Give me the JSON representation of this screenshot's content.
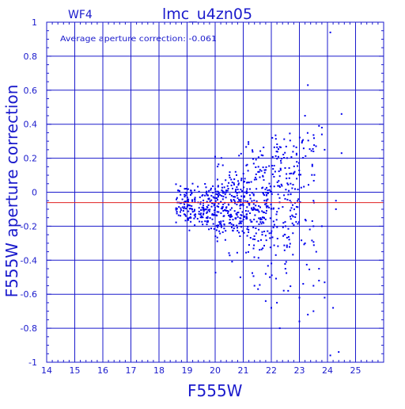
{
  "chart_data": {
    "type": "scatter",
    "title": "lmc_u4zn05",
    "chip_label": "WF4",
    "annotation": "Average aperture correction: -0.061",
    "xlabel": "F555W",
    "ylabel": "F555W aperture correction",
    "xlim": [
      14,
      26
    ],
    "ylim": [
      -1,
      1
    ],
    "x_ticks": [
      14,
      15,
      16,
      17,
      18,
      19,
      20,
      21,
      22,
      23,
      24,
      25
    ],
    "y_ticks": [
      -1,
      -0.8,
      -0.6,
      -0.4,
      -0.2,
      0,
      0.2,
      0.4,
      0.6,
      0.8,
      1
    ],
    "grid": true,
    "mean_line": {
      "y": -0.061,
      "color": "#e02020"
    },
    "colors": {
      "axes": "#1a1acc",
      "points": "#0000ee"
    },
    "clusters": [
      {
        "x_range": [
          18.6,
          20.0
        ],
        "y_center": -0.08,
        "y_spread": 0.06,
        "count": 190
      },
      {
        "x_range": [
          20.0,
          21.0
        ],
        "y_center": -0.09,
        "y_spread": 0.11,
        "count": 200
      },
      {
        "x_range": [
          21.0,
          22.0
        ],
        "y_center": -0.09,
        "y_spread": 0.16,
        "count": 200
      },
      {
        "x_range": [
          22.0,
          22.9
        ],
        "y_center": -0.02,
        "y_spread": 0.22,
        "count": 140
      },
      {
        "x_range": [
          22.9,
          23.6
        ],
        "y_center": 0.05,
        "y_spread": 0.3,
        "count": 50
      }
    ],
    "outliers": [
      [
        24.1,
        0.94
      ],
      [
        23.3,
        0.63
      ],
      [
        24.5,
        0.46
      ],
      [
        23.2,
        0.45
      ],
      [
        23.7,
        0.39
      ],
      [
        23.8,
        0.38
      ],
      [
        23.8,
        0.34
      ],
      [
        23.5,
        0.24
      ],
      [
        23.9,
        0.25
      ],
      [
        24.5,
        0.23
      ],
      [
        22.9,
        0.22
      ],
      [
        23.1,
        0.3
      ],
      [
        24.3,
        -0.05
      ],
      [
        23.5,
        -0.05
      ],
      [
        24.3,
        -0.1
      ],
      [
        23.5,
        -0.2
      ],
      [
        23.6,
        -0.35
      ],
      [
        23.7,
        -0.45
      ],
      [
        23.5,
        -0.55
      ],
      [
        23.7,
        -0.52
      ],
      [
        23.9,
        -0.53
      ],
      [
        23.9,
        -0.62
      ],
      [
        23.0,
        -0.62
      ],
      [
        23.5,
        -0.7
      ],
      [
        23.0,
        -0.76
      ],
      [
        23.3,
        -0.72
      ],
      [
        24.2,
        -0.68
      ],
      [
        22.6,
        -0.58
      ],
      [
        22.2,
        -0.65
      ],
      [
        22.0,
        -0.68
      ],
      [
        21.8,
        -0.64
      ],
      [
        22.5,
        -0.45
      ],
      [
        21.4,
        -0.55
      ],
      [
        20.9,
        -0.5
      ],
      [
        21.8,
        -0.48
      ],
      [
        24.1,
        -0.96
      ],
      [
        24.4,
        -0.94
      ],
      [
        22.3,
        -0.8
      ],
      [
        23.8,
        -0.2
      ],
      [
        23.2,
        -0.3
      ]
    ]
  }
}
